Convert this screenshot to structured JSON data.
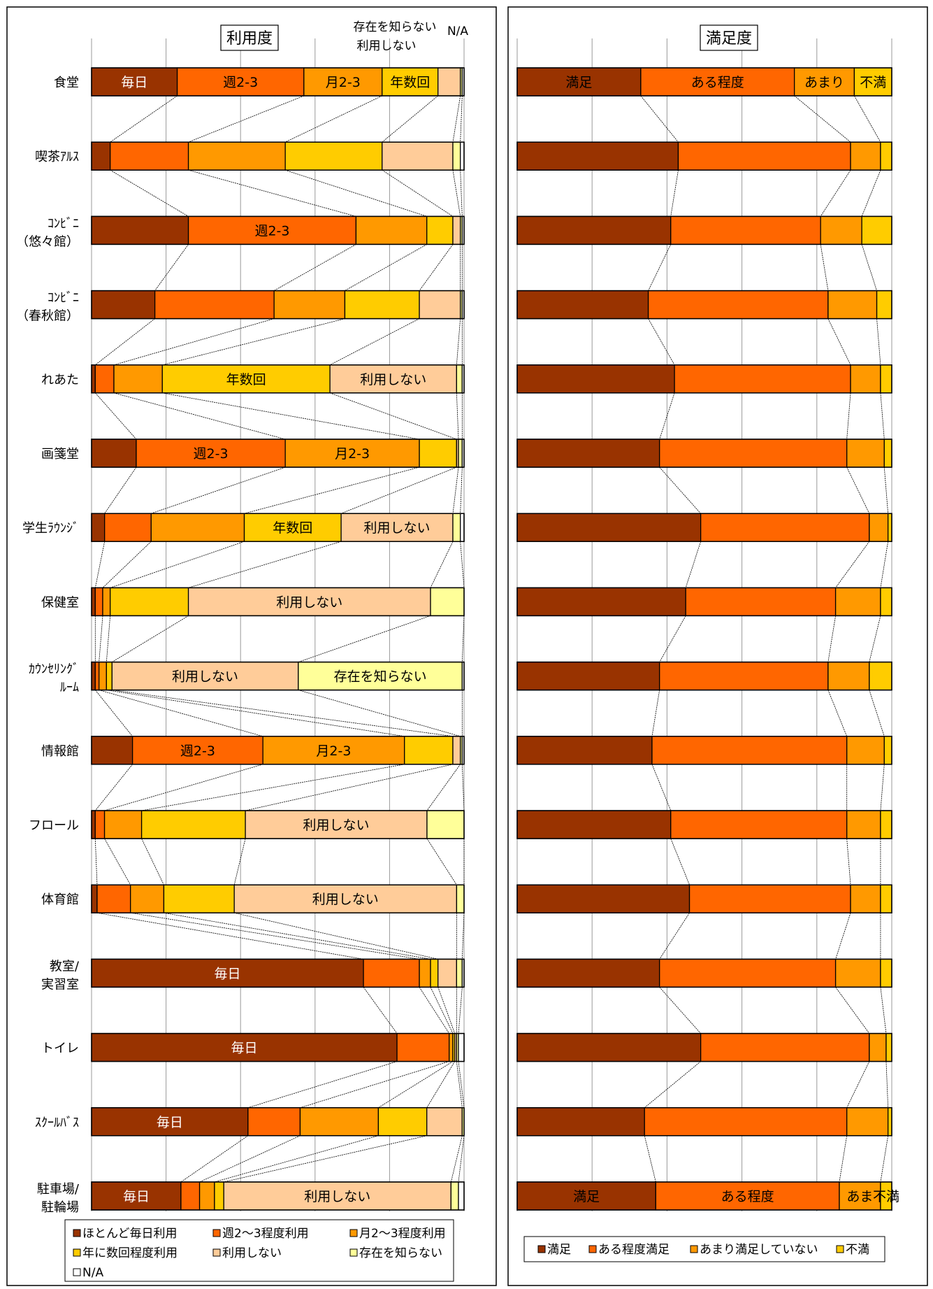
{
  "chart_data": [
    {
      "type": "bar",
      "stacked": "percent",
      "orientation": "horizontal",
      "title": "利用度",
      "header_labels": [
        "存在を知らない",
        "利用しない",
        "N/A"
      ],
      "categories": [
        [
          "食堂"
        ],
        [
          "喫茶ｱﾙｽ"
        ],
        [
          "ｺﾝﾋﾞﾆ",
          "（悠々館）"
        ],
        [
          "ｺﾝﾋﾞﾆ",
          "（春秋館）"
        ],
        [
          "れあた"
        ],
        [
          "画箋堂"
        ],
        [
          "学生ﾗｳﾝｼﾞ"
        ],
        [
          "保健室"
        ],
        [
          "ｶｳﾝｾﾘﾝｸﾞ",
          "ﾙｰﾑ"
        ],
        [
          "情報館"
        ],
        [
          "フロール"
        ],
        [
          "体育館"
        ],
        [
          "教室/",
          "実習室"
        ],
        [
          "トイレ"
        ],
        [
          "ｽｸｰﾙﾊﾞｽ"
        ],
        [
          "駐車場/",
          "駐輪場"
        ]
      ],
      "series": [
        {
          "name": "ほとんど毎日利用",
          "color": "#993300",
          "values": [
            23,
            5,
            26,
            17,
            1,
            12,
            3.5,
            1,
            1,
            11,
            1,
            1.5,
            73,
            82,
            42,
            24
          ]
        },
        {
          "name": "週2～3程度利用",
          "color": "#ff6600",
          "values": [
            34,
            21,
            45,
            32,
            5,
            40,
            12.5,
            2,
            1,
            35,
            2.5,
            9,
            15,
            14,
            14,
            5
          ]
        },
        {
          "name": "月2～3程度利用",
          "color": "#ff9900",
          "values": [
            21,
            26,
            19,
            19,
            13,
            36,
            25,
            2,
            2,
            38,
            10,
            9,
            3,
            1,
            21,
            4
          ]
        },
        {
          "name": "年に数回程度利用",
          "color": "#ffcc00",
          "values": [
            15,
            26,
            7,
            20,
            45,
            10,
            26,
            21,
            1.5,
            13,
            28,
            19,
            2,
            0.5,
            13,
            2.5
          ]
        },
        {
          "name": "利用しない",
          "color": "#ffcc99",
          "values": [
            6,
            19,
            2,
            11,
            34,
            0.5,
            30,
            65,
            50,
            2,
            49,
            60,
            5,
            0.5,
            9.5,
            61
          ]
        },
        {
          "name": "存在を知らない",
          "color": "#ffff99",
          "values": [
            0.5,
            2,
            0.5,
            0.5,
            1.5,
            1,
            2,
            9,
            44,
            0.5,
            10,
            2,
            1.5,
            0.5,
            0.5,
            2
          ]
        },
        {
          "name": "N/A",
          "color": "#ffffff",
          "values": [
            0.5,
            1,
            0.5,
            0.5,
            0.5,
            0.5,
            1,
            0,
            0.5,
            0.5,
            0,
            0,
            0.5,
            1.5,
            0,
            1.5
          ]
        }
      ],
      "segment_labels": [
        {
          "row": 0,
          "series": 0,
          "text": "毎日"
        },
        {
          "row": 0,
          "series": 1,
          "text": "週2-3"
        },
        {
          "row": 0,
          "series": 2,
          "text": "月2-3"
        },
        {
          "row": 0,
          "series": 3,
          "text": "年数回"
        },
        {
          "row": 2,
          "series": 1,
          "text": "週2-3"
        },
        {
          "row": 4,
          "series": 3,
          "text": "年数回"
        },
        {
          "row": 4,
          "series": 4,
          "text": "利用しない"
        },
        {
          "row": 5,
          "series": 1,
          "text": "週2-3"
        },
        {
          "row": 5,
          "series": 2,
          "text": "月2-3"
        },
        {
          "row": 6,
          "series": 3,
          "text": "年数回"
        },
        {
          "row": 6,
          "series": 4,
          "text": "利用しない"
        },
        {
          "row": 7,
          "series": 4,
          "text": "利用しない"
        },
        {
          "row": 8,
          "series": 4,
          "text": "利用しない"
        },
        {
          "row": 8,
          "series": 5,
          "text": "存在を知らない"
        },
        {
          "row": 9,
          "series": 1,
          "text": "週2-3"
        },
        {
          "row": 9,
          "series": 2,
          "text": "月2-3"
        },
        {
          "row": 10,
          "series": 4,
          "text": "利用しない"
        },
        {
          "row": 11,
          "series": 4,
          "text": "利用しない"
        },
        {
          "row": 12,
          "series": 0,
          "text": "毎日"
        },
        {
          "row": 13,
          "series": 0,
          "text": "毎日"
        },
        {
          "row": 14,
          "series": 0,
          "text": "毎日"
        },
        {
          "row": 15,
          "series": 0,
          "text": "毎日"
        },
        {
          "row": 15,
          "series": 4,
          "text": "利用しない"
        }
      ],
      "xlim": [
        0,
        100
      ],
      "grid": true,
      "legend": "bottom"
    },
    {
      "type": "bar",
      "stacked": "percent",
      "orientation": "horizontal",
      "title": "満足度",
      "series": [
        {
          "name": "満足",
          "color": "#993300",
          "values": [
            33,
            43,
            41,
            35,
            42,
            38,
            49,
            45,
            38,
            36,
            41,
            46,
            38,
            49,
            34,
            37
          ]
        },
        {
          "name": "ある程度満足",
          "color": "#ff6600",
          "values": [
            41,
            46,
            40,
            48,
            47,
            50,
            45,
            40,
            45,
            52,
            47,
            43,
            47,
            45,
            54,
            49
          ]
        },
        {
          "name": "あまり満足していない",
          "color": "#ff9900",
          "values": [
            16,
            8,
            11,
            13,
            8,
            10,
            5,
            12,
            11,
            10,
            9,
            8,
            12,
            4.5,
            11,
            11
          ]
        },
        {
          "name": "不満",
          "color": "#ffcc00",
          "values": [
            10,
            3,
            8,
            4,
            3,
            2,
            1,
            3,
            6,
            2,
            3,
            3,
            3,
            1.5,
            1,
            3
          ]
        }
      ],
      "segment_labels": [
        {
          "row": 0,
          "series": 0,
          "text": "満足"
        },
        {
          "row": 0,
          "series": 1,
          "text": "ある程度"
        },
        {
          "row": 0,
          "series": 2,
          "text": "あまり"
        },
        {
          "row": 0,
          "series": 3,
          "text": "不満"
        },
        {
          "row": 15,
          "series": 0,
          "text": "満足"
        },
        {
          "row": 15,
          "series": 1,
          "text": "ある程度"
        },
        {
          "row": 15,
          "series": 2,
          "text": "あま"
        },
        {
          "row": 15,
          "series": 3,
          "text": "不満"
        }
      ],
      "xlim": [
        0,
        100
      ],
      "grid": true,
      "legend": "bottom"
    }
  ]
}
